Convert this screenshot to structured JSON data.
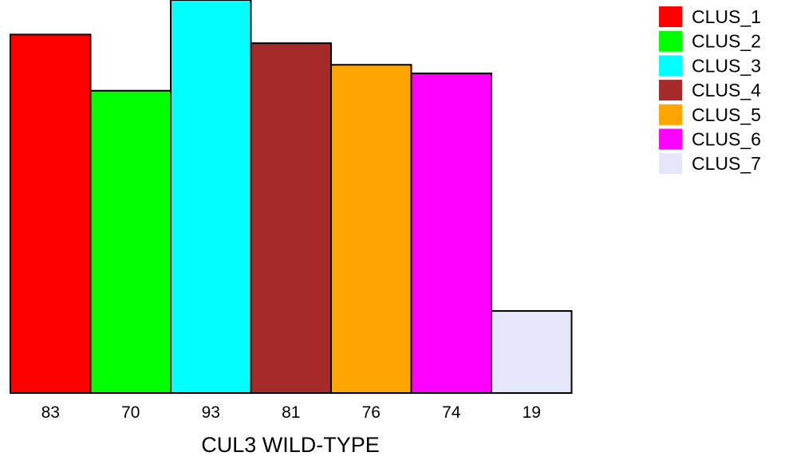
{
  "chart_data": {
    "type": "bar",
    "title": "",
    "xlabel": "CUL3 WILD-TYPE",
    "ylabel": "",
    "categories": [
      "CLUS_1",
      "CLUS_2",
      "CLUS_3",
      "CLUS_4",
      "CLUS_5",
      "CLUS_6",
      "CLUS_7"
    ],
    "values": [
      83,
      70,
      93,
      81,
      76,
      74,
      19
    ],
    "tick_labels": [
      "83",
      "70",
      "93",
      "81",
      "76",
      "74",
      "19"
    ],
    "colors": [
      "#ff0000",
      "#00ff00",
      "#00ffff",
      "#a52a2a",
      "#ffa500",
      "#ff00ff",
      "#e6e6fa"
    ],
    "ylim": [
      0,
      91
    ],
    "grid": false,
    "legend_position": "top-right"
  }
}
